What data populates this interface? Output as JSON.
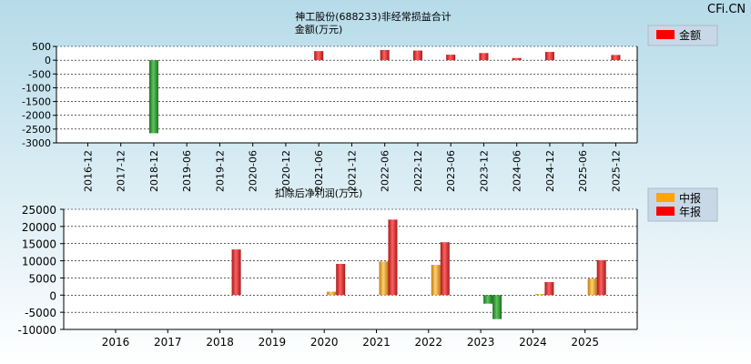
{
  "watermark": "CFi.CN",
  "colors": {
    "bg_top": "#b8dcea",
    "bg_bottom": "#ffffff",
    "plot_bg": "#ffffff",
    "green": "#3a9a3a",
    "red": "#e03030",
    "orange": "#f0a020",
    "legend_bg": "#c8d8e6"
  },
  "chart_data": [
    {
      "type": "bar",
      "title": "神工股份(688233)非经常损益合计",
      "subtitle": "金额(万元)",
      "legend": [
        {
          "name": "金额",
          "color": "#ff0000"
        }
      ],
      "ylim": [
        -3000,
        500
      ],
      "yticks": [
        500,
        0,
        -500,
        -1000,
        -1500,
        -2000,
        -2500,
        -3000
      ],
      "categories": [
        "2016-12",
        "2017-12",
        "2018-12",
        "2019-06",
        "2019-12",
        "2020-06",
        "2020-12",
        "2021-06",
        "2021-12",
        "2022-06",
        "2022-12",
        "2023-06",
        "2023-12",
        "2024-06",
        "2024-12",
        "2025-06",
        "2025-12"
      ],
      "values": [
        null,
        null,
        -2650,
        null,
        null,
        null,
        null,
        330,
        null,
        370,
        350,
        200,
        260,
        80,
        300,
        null,
        190
      ]
    },
    {
      "type": "bar",
      "title": "扣除后净利润(万元)",
      "legend": [
        {
          "name": "中报",
          "color": "#ffa500"
        },
        {
          "name": "年报",
          "color": "#ff0000"
        }
      ],
      "ylim": [
        -10000,
        25000
      ],
      "yticks": [
        25000,
        20000,
        15000,
        10000,
        5000,
        0,
        -5000,
        -10000
      ],
      "categories": [
        "2016",
        "2017",
        "2018",
        "2019",
        "2020",
        "2021",
        "2022",
        "2023",
        "2024",
        "2025"
      ],
      "series": [
        {
          "name": "中报",
          "values": [
            null,
            null,
            null,
            null,
            1000,
            9800,
            8800,
            -2500,
            300,
            4800
          ]
        },
        {
          "name": "年报",
          "values": [
            null,
            null,
            13300,
            null,
            9100,
            22000,
            15400,
            -7000,
            3800,
            10200
          ]
        }
      ]
    }
  ]
}
